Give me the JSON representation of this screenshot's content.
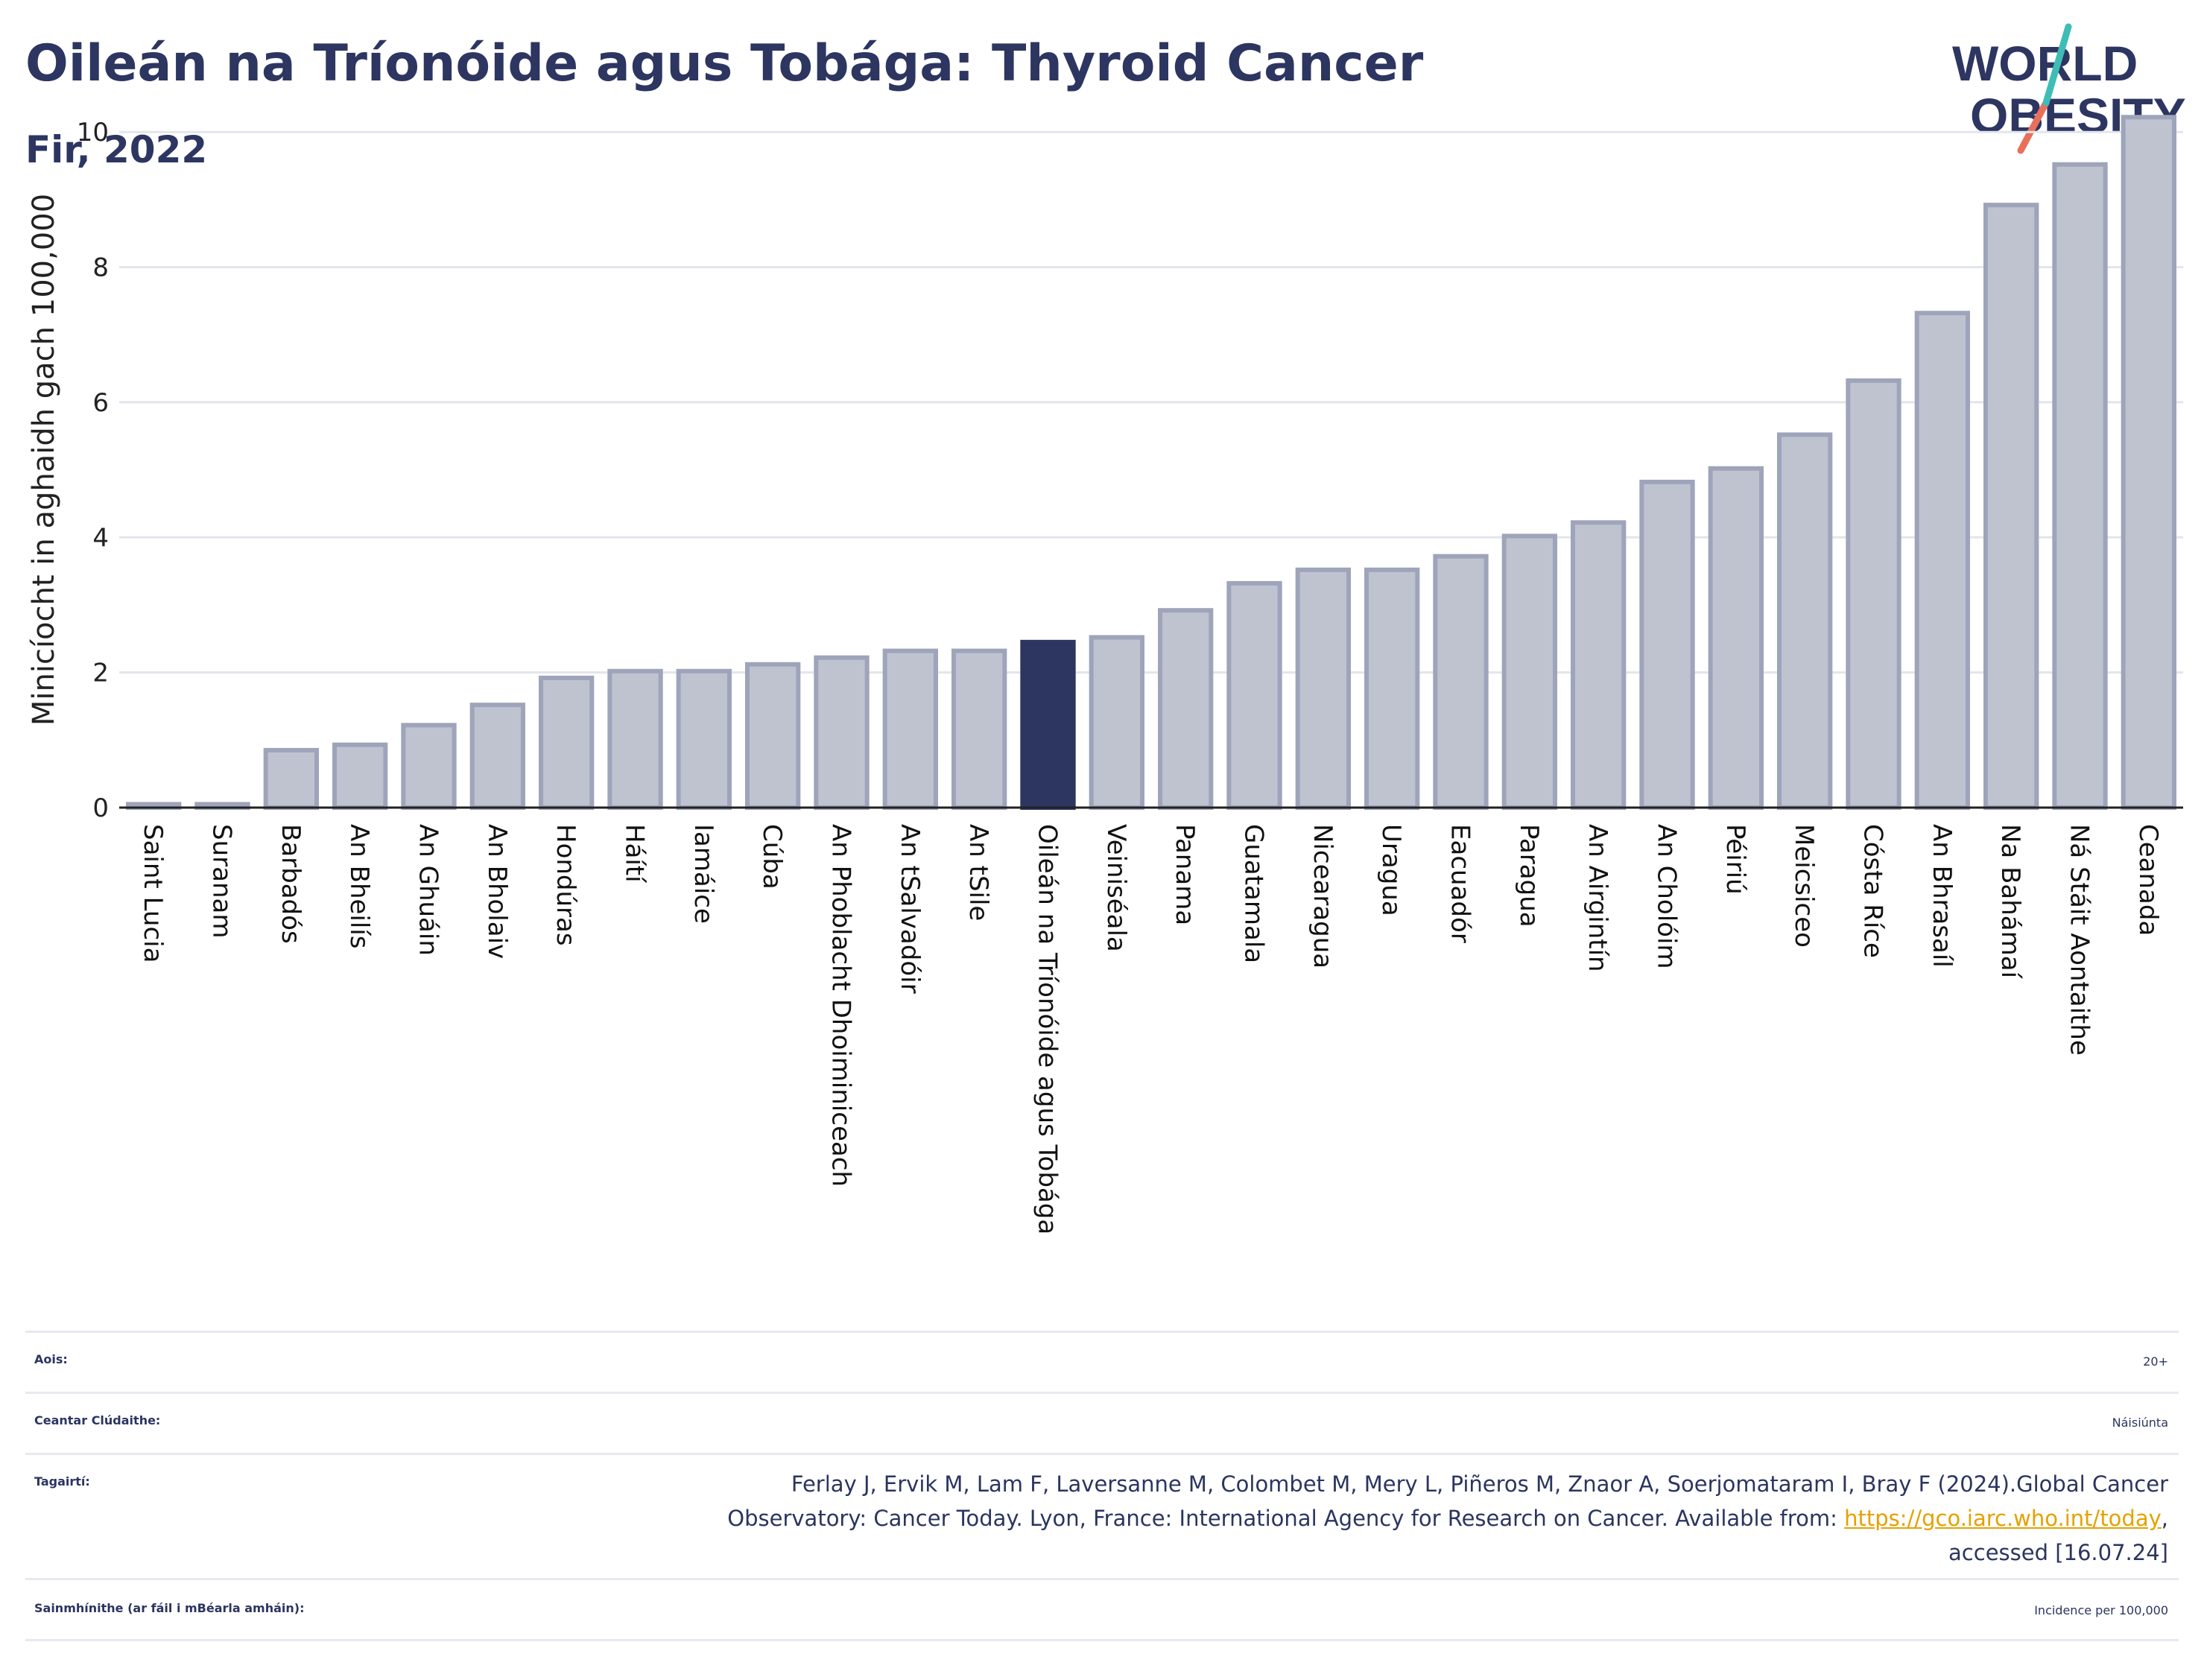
{
  "header": {
    "title": "Oileán na Tríonóide agus Tobága: Thyroid Cancer",
    "subtitle": "Fir, 2022"
  },
  "logo": {
    "line1": "WORLD",
    "line2": "OBESITY"
  },
  "colors": {
    "bar": "#bfc3d0",
    "bar_border": "#9ea4ba",
    "highlight": "#2d3561",
    "grid": "#e3e5ec",
    "axis": "#222222"
  },
  "chart_data": {
    "type": "bar",
    "ylabel": "Minicíocht in aghaidh gach 100,000",
    "ylim": [
      0,
      10.3
    ],
    "yticks": [
      0,
      2,
      4,
      6,
      8,
      10
    ],
    "grid": true,
    "highlight": "Oileán na Tríonóide agus Tobága",
    "categories": [
      "Saint Lucia",
      "Suranam",
      "Barbadós",
      "An Bheilís",
      "An Ghuáin",
      "An Bholaiv",
      "Hondúras",
      "Háítí",
      "Iamáice",
      "Cúba",
      "An Phoblacht Dhoiminiceach",
      "An tSalvadóir",
      "An tSile",
      "Oileán na Tríonóide agus Tobága",
      "Veiniséala",
      "Panama",
      "Guatamala",
      "Nicearagua",
      "Uragua",
      "Eacuadór",
      "Paragua",
      "An Airgintín",
      "An Cholóim",
      "Péiriú",
      "Meicsiceo",
      "Cósta Ríce",
      "An Bhrasaíl",
      "Na Bahámaí",
      "Ná Stáit Aontaithe",
      "Ceanada"
    ],
    "values": [
      0.05,
      0.05,
      0.85,
      0.93,
      1.22,
      1.52,
      1.92,
      2.02,
      2.02,
      2.12,
      2.22,
      2.32,
      2.32,
      2.45,
      2.52,
      2.92,
      3.32,
      3.52,
      3.52,
      3.72,
      4.02,
      4.22,
      4.82,
      5.02,
      5.52,
      6.32,
      7.32,
      8.92,
      9.52,
      10.22
    ]
  },
  "meta": {
    "age_label": "Aois:",
    "age_value": "20+",
    "area_label": "Ceantar Clúdaithe:",
    "area_value": "Náisiúnta",
    "refs_label": "Tagairtí:",
    "refs_line1": "Ferlay J, Ervik M, Lam F, Laversanne M, Colombet M, Mery L, Piñeros M, Znaor A, Soerjomataram I, Bray F (2024).Global Cancer",
    "refs_line2": "Observatory: Cancer Today. Lyon, France: International Agency for Research on Cancer. Available from: ",
    "refs_link": "https://gco.iarc.who.int/today",
    "refs_line2_end": ",",
    "refs_line3": "accessed [16.07.24]",
    "defs_label": "Sainmhínithe (ar fáil i mBéarla amháin):",
    "defs_value": "Incidence per 100,000"
  }
}
